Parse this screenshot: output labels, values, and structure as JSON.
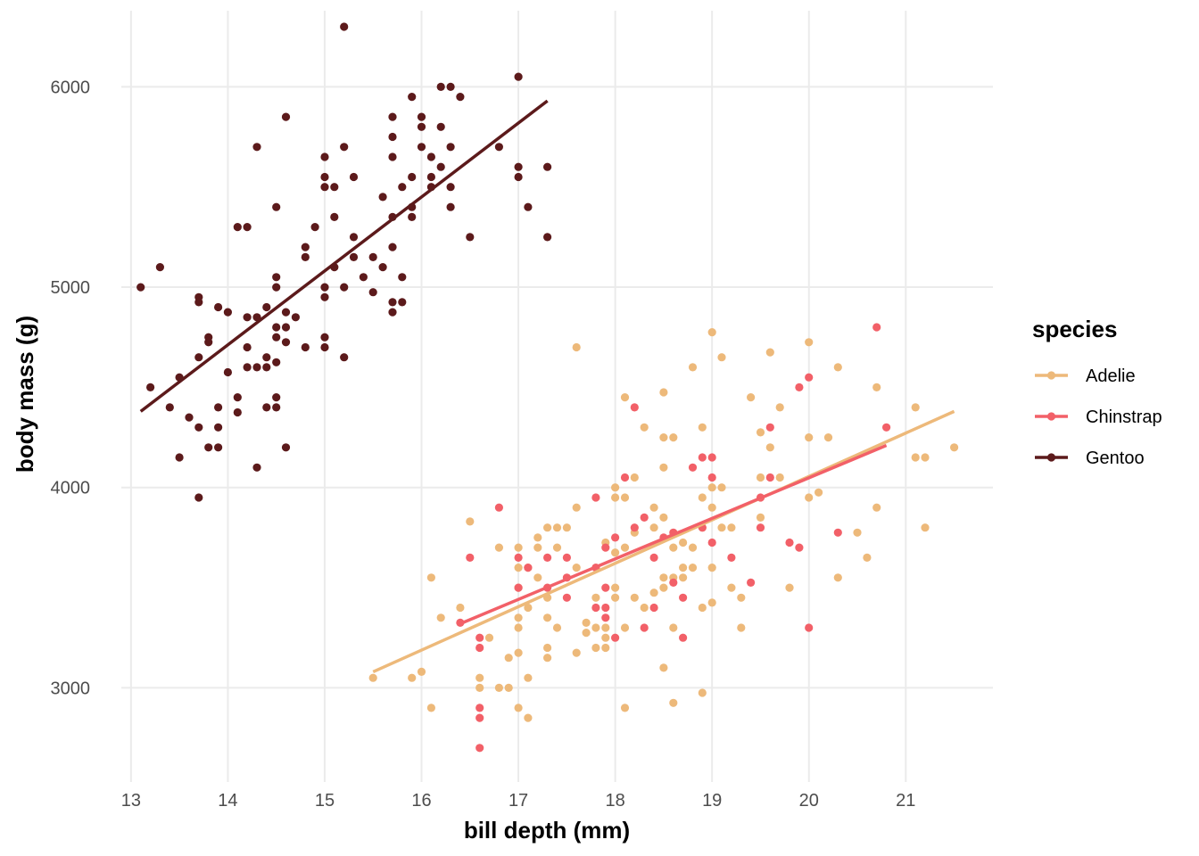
{
  "chart_data": {
    "type": "scatter",
    "xlabel": "bill depth (mm)",
    "ylabel": "body mass (g)",
    "xlim": [
      12.9,
      21.9
    ],
    "ylim": [
      2530,
      6380
    ],
    "x_ticks": [
      13,
      14,
      15,
      16,
      17,
      18,
      19,
      20,
      21
    ],
    "y_ticks": [
      3000,
      4000,
      5000,
      6000
    ],
    "grid": true,
    "legend": {
      "title": "species",
      "position": "right"
    },
    "series": [
      {
        "name": "Adelie",
        "color": "#EDB97A",
        "trend": [
          [
            15.5,
            3080
          ],
          [
            21.5,
            4380
          ]
        ],
        "points": [
          [
            15.5,
            3050
          ],
          [
            15.9,
            3050
          ],
          [
            16.0,
            3080
          ],
          [
            16.1,
            2900
          ],
          [
            16.1,
            3550
          ],
          [
            16.2,
            3350
          ],
          [
            16.4,
            3400
          ],
          [
            16.5,
            3830
          ],
          [
            16.7,
            3250
          ],
          [
            16.8,
            3000
          ],
          [
            16.8,
            3700
          ],
          [
            16.9,
            3000
          ],
          [
            16.9,
            3150
          ],
          [
            17.0,
            2900
          ],
          [
            17.0,
            3175
          ],
          [
            17.0,
            3300
          ],
          [
            17.0,
            3350
          ],
          [
            17.0,
            3600
          ],
          [
            17.0,
            3700
          ],
          [
            17.1,
            2850
          ],
          [
            17.1,
            3050
          ],
          [
            17.1,
            3400
          ],
          [
            17.1,
            3600
          ],
          [
            17.2,
            3550
          ],
          [
            17.2,
            3700
          ],
          [
            17.2,
            3750
          ],
          [
            17.3,
            3150
          ],
          [
            17.3,
            3200
          ],
          [
            17.3,
            3450
          ],
          [
            17.3,
            3800
          ],
          [
            17.4,
            3300
          ],
          [
            17.4,
            3700
          ],
          [
            17.5,
            3800
          ],
          [
            17.6,
            3175
          ],
          [
            17.6,
            3600
          ],
          [
            17.6,
            3900
          ],
          [
            17.7,
            3275
          ],
          [
            17.7,
            3325
          ],
          [
            17.8,
            3200
          ],
          [
            17.8,
            3300
          ],
          [
            17.8,
            3450
          ],
          [
            17.9,
            3200
          ],
          [
            17.9,
            3250
          ],
          [
            17.9,
            3300
          ],
          [
            18.0,
            3450
          ],
          [
            18.0,
            3500
          ],
          [
            18.0,
            3950
          ],
          [
            18.0,
            4000
          ],
          [
            18.1,
            2900
          ],
          [
            18.1,
            3300
          ],
          [
            18.1,
            3700
          ],
          [
            18.1,
            3950
          ],
          [
            18.2,
            3450
          ],
          [
            18.2,
            4050
          ],
          [
            18.3,
            3400
          ],
          [
            18.4,
            3475
          ],
          [
            18.4,
            3800
          ],
          [
            18.5,
            3100
          ],
          [
            18.5,
            3500
          ],
          [
            18.5,
            3550
          ],
          [
            18.5,
            3850
          ],
          [
            18.5,
            4100
          ],
          [
            18.5,
            4250
          ],
          [
            18.6,
            2925
          ],
          [
            18.6,
            3550
          ],
          [
            18.6,
            3700
          ],
          [
            18.6,
            4250
          ],
          [
            18.7,
            3550
          ],
          [
            18.7,
            3600
          ],
          [
            18.8,
            3600
          ],
          [
            18.8,
            4600
          ],
          [
            18.9,
            2975
          ],
          [
            18.9,
            3400
          ],
          [
            18.9,
            3800
          ],
          [
            18.9,
            3950
          ],
          [
            19.0,
            3425
          ],
          [
            19.0,
            3600
          ],
          [
            19.0,
            4000
          ],
          [
            19.0,
            4775
          ],
          [
            19.1,
            3800
          ],
          [
            19.1,
            4000
          ],
          [
            19.1,
            4650
          ],
          [
            19.2,
            3500
          ],
          [
            19.2,
            3800
          ],
          [
            19.3,
            3300
          ],
          [
            19.3,
            3450
          ],
          [
            19.4,
            4450
          ],
          [
            19.5,
            3850
          ],
          [
            19.5,
            4050
          ],
          [
            19.5,
            4275
          ],
          [
            19.6,
            4675
          ],
          [
            19.7,
            4050
          ],
          [
            19.7,
            4400
          ],
          [
            19.8,
            3500
          ],
          [
            20.0,
            3950
          ],
          [
            20.0,
            4250
          ],
          [
            20.0,
            4725
          ],
          [
            20.1,
            3975
          ],
          [
            20.2,
            4250
          ],
          [
            20.3,
            3550
          ],
          [
            20.3,
            4600
          ],
          [
            20.5,
            3775
          ],
          [
            20.6,
            3650
          ],
          [
            20.7,
            3900
          ],
          [
            20.7,
            4500
          ],
          [
            21.1,
            4150
          ],
          [
            21.1,
            4400
          ],
          [
            21.2,
            3800
          ],
          [
            21.2,
            4150
          ],
          [
            21.5,
            4200
          ],
          [
            17.6,
            4700
          ],
          [
            18.1,
            4450
          ],
          [
            18.3,
            4300
          ],
          [
            18.5,
            4475
          ],
          [
            18.9,
            4300
          ],
          [
            18.0,
            3675
          ],
          [
            17.9,
            3725
          ],
          [
            18.7,
            3725
          ],
          [
            18.4,
            3900
          ],
          [
            19.0,
            3900
          ],
          [
            18.2,
            3775
          ],
          [
            17.4,
            3800
          ],
          [
            18.6,
            3300
          ],
          [
            19.6,
            4200
          ],
          [
            18.8,
            3700
          ],
          [
            16.6,
            3050
          ],
          [
            16.6,
            3000
          ],
          [
            17.0,
            3500
          ],
          [
            17.3,
            3350
          ]
        ]
      },
      {
        "name": "Chinstrap",
        "color": "#F26068",
        "trend": [
          [
            16.4,
            3320
          ],
          [
            20.8,
            4210
          ]
        ],
        "points": [
          [
            16.4,
            3325
          ],
          [
            16.5,
            3650
          ],
          [
            16.6,
            2700
          ],
          [
            16.6,
            2850
          ],
          [
            16.6,
            2900
          ],
          [
            16.6,
            3200
          ],
          [
            16.6,
            3250
          ],
          [
            16.8,
            3900
          ],
          [
            17.0,
            3500
          ],
          [
            17.0,
            3650
          ],
          [
            17.1,
            3600
          ],
          [
            17.3,
            3500
          ],
          [
            17.3,
            3650
          ],
          [
            17.5,
            3450
          ],
          [
            17.5,
            3550
          ],
          [
            17.5,
            3650
          ],
          [
            17.8,
            3400
          ],
          [
            17.8,
            3600
          ],
          [
            17.8,
            3950
          ],
          [
            17.9,
            3350
          ],
          [
            17.9,
            3500
          ],
          [
            17.9,
            3700
          ],
          [
            18.0,
            3250
          ],
          [
            18.0,
            3750
          ],
          [
            18.1,
            4050
          ],
          [
            18.2,
            3800
          ],
          [
            18.2,
            4400
          ],
          [
            18.3,
            3850
          ],
          [
            18.3,
            3300
          ],
          [
            18.4,
            3400
          ],
          [
            18.5,
            3750
          ],
          [
            18.6,
            3525
          ],
          [
            18.7,
            3250
          ],
          [
            18.7,
            3450
          ],
          [
            18.8,
            4100
          ],
          [
            18.9,
            3800
          ],
          [
            18.9,
            4150
          ],
          [
            19.0,
            3725
          ],
          [
            19.0,
            4050
          ],
          [
            19.0,
            4150
          ],
          [
            19.2,
            3650
          ],
          [
            19.4,
            3525
          ],
          [
            19.5,
            3950
          ],
          [
            19.6,
            4050
          ],
          [
            19.6,
            4300
          ],
          [
            19.8,
            3725
          ],
          [
            19.9,
            3700
          ],
          [
            19.9,
            4500
          ],
          [
            20.0,
            3300
          ],
          [
            20.0,
            4550
          ],
          [
            20.3,
            3775
          ],
          [
            20.7,
            4800
          ],
          [
            20.8,
            4300
          ],
          [
            17.9,
            3400
          ],
          [
            18.4,
            3650
          ],
          [
            19.5,
            3800
          ],
          [
            18.6,
            3775
          ]
        ]
      },
      {
        "name": "Gentoo",
        "color": "#5C1A1B",
        "trend": [
          [
            13.1,
            4380
          ],
          [
            17.3,
            5930
          ]
        ],
        "points": [
          [
            13.1,
            5000
          ],
          [
            13.2,
            4500
          ],
          [
            13.3,
            5100
          ],
          [
            13.4,
            4400
          ],
          [
            13.5,
            4150
          ],
          [
            13.5,
            4550
          ],
          [
            13.6,
            4350
          ],
          [
            13.7,
            3950
          ],
          [
            13.7,
            4300
          ],
          [
            13.7,
            4650
          ],
          [
            13.7,
            4925
          ],
          [
            13.7,
            4950
          ],
          [
            13.8,
            4200
          ],
          [
            13.8,
            4725
          ],
          [
            13.8,
            4750
          ],
          [
            13.9,
            4200
          ],
          [
            13.9,
            4300
          ],
          [
            13.9,
            4400
          ],
          [
            13.9,
            4900
          ],
          [
            14.0,
            4575
          ],
          [
            14.0,
            4875
          ],
          [
            14.1,
            4375
          ],
          [
            14.1,
            4450
          ],
          [
            14.1,
            5300
          ],
          [
            14.2,
            4600
          ],
          [
            14.2,
            4700
          ],
          [
            14.2,
            4850
          ],
          [
            14.2,
            5300
          ],
          [
            14.3,
            4100
          ],
          [
            14.3,
            4600
          ],
          [
            14.3,
            4850
          ],
          [
            14.3,
            5700
          ],
          [
            14.4,
            4400
          ],
          [
            14.4,
            4600
          ],
          [
            14.4,
            4650
          ],
          [
            14.4,
            4900
          ],
          [
            14.5,
            4400
          ],
          [
            14.5,
            4450
          ],
          [
            14.5,
            4625
          ],
          [
            14.5,
            4750
          ],
          [
            14.5,
            4800
          ],
          [
            14.5,
            5000
          ],
          [
            14.5,
            5050
          ],
          [
            14.5,
            5400
          ],
          [
            14.6,
            4200
          ],
          [
            14.6,
            4725
          ],
          [
            14.6,
            4800
          ],
          [
            14.6,
            4875
          ],
          [
            14.6,
            5850
          ],
          [
            14.7,
            4850
          ],
          [
            14.8,
            4700
          ],
          [
            14.8,
            5200
          ],
          [
            14.8,
            5150
          ],
          [
            14.9,
            5300
          ],
          [
            15.0,
            4700
          ],
          [
            15.0,
            4750
          ],
          [
            15.0,
            4950
          ],
          [
            15.0,
            5000
          ],
          [
            15.0,
            5500
          ],
          [
            15.0,
            5550
          ],
          [
            15.0,
            5650
          ],
          [
            15.1,
            5100
          ],
          [
            15.1,
            5350
          ],
          [
            15.1,
            5500
          ],
          [
            15.2,
            4650
          ],
          [
            15.2,
            5000
          ],
          [
            15.2,
            5700
          ],
          [
            15.2,
            6300
          ],
          [
            15.3,
            5150
          ],
          [
            15.3,
            5250
          ],
          [
            15.3,
            5550
          ],
          [
            15.4,
            5050
          ],
          [
            15.5,
            4975
          ],
          [
            15.5,
            5150
          ],
          [
            15.6,
            5100
          ],
          [
            15.6,
            5450
          ],
          [
            15.7,
            4875
          ],
          [
            15.7,
            4925
          ],
          [
            15.7,
            5200
          ],
          [
            15.7,
            5350
          ],
          [
            15.7,
            5650
          ],
          [
            15.7,
            5750
          ],
          [
            15.7,
            5850
          ],
          [
            15.8,
            4925
          ],
          [
            15.8,
            5050
          ],
          [
            15.8,
            5500
          ],
          [
            15.9,
            5350
          ],
          [
            15.9,
            5400
          ],
          [
            15.9,
            5550
          ],
          [
            15.9,
            5950
          ],
          [
            16.0,
            5700
          ],
          [
            16.0,
            5800
          ],
          [
            16.0,
            5850
          ],
          [
            16.1,
            5500
          ],
          [
            16.1,
            5550
          ],
          [
            16.1,
            5650
          ],
          [
            16.2,
            5600
          ],
          [
            16.2,
            5800
          ],
          [
            16.2,
            6000
          ],
          [
            16.3,
            5700
          ],
          [
            16.3,
            6000
          ],
          [
            16.3,
            5400
          ],
          [
            16.3,
            5500
          ],
          [
            16.4,
            5950
          ],
          [
            16.5,
            5250
          ],
          [
            16.8,
            5700
          ],
          [
            17.0,
            5550
          ],
          [
            17.0,
            5600
          ],
          [
            17.0,
            6050
          ],
          [
            17.1,
            5400
          ],
          [
            17.3,
            5250
          ],
          [
            17.3,
            5600
          ]
        ]
      }
    ]
  }
}
